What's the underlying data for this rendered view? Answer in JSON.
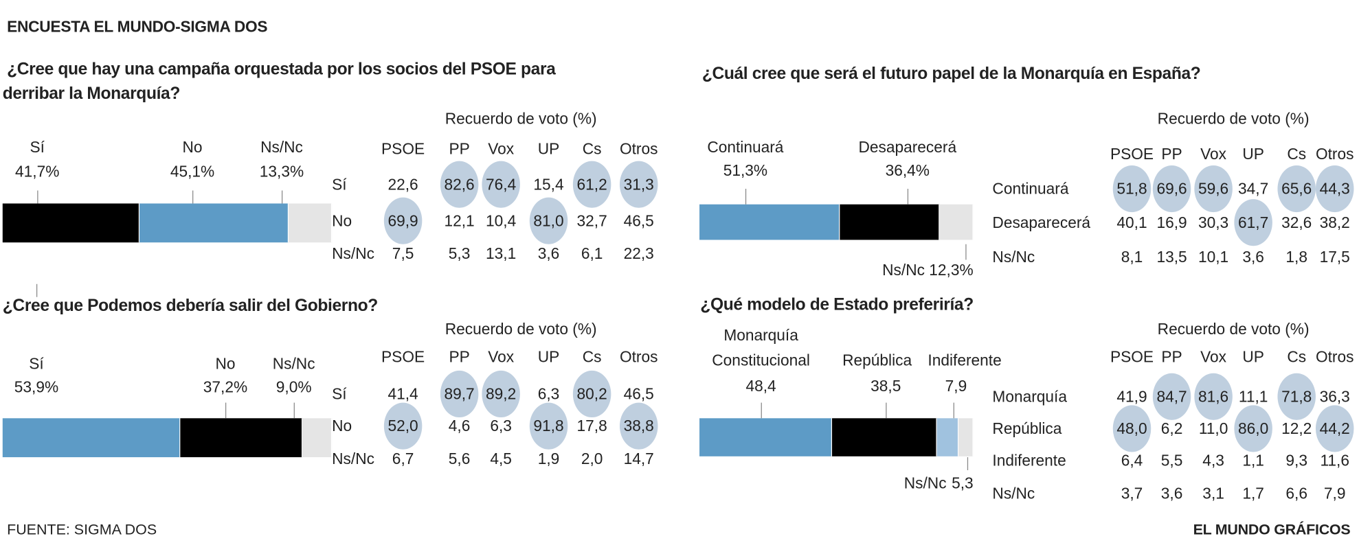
{
  "header": {
    "title": "ENCUESTA EL MUNDO-SIGMA DOS"
  },
  "footer": {
    "source": "FUENTE: SIGMA DOS",
    "credit": "EL MUNDO GRÁFICOS"
  },
  "colors": {
    "blue": "#5d9bc6",
    "black": "#000000",
    "gray": "#e5e5e5",
    "light_blue": "#a0c2df",
    "highlight": "#bfcfdf"
  },
  "chart_data": [
    {
      "type": "table",
      "title_lines": [
        "¿Cree que hay una campaña orquestada por los socios del PSOE para",
        "derribar la Monarquía?"
      ],
      "bar": [
        {
          "label": [
            "Sí"
          ],
          "value_label": "41,7%",
          "value": 41.7,
          "color": "#000000"
        },
        {
          "label": [
            "No"
          ],
          "value_label": "45,1%",
          "value": 45.1,
          "color": "#5d9bc6"
        },
        {
          "label": [
            "Ns/Nc"
          ],
          "value_label": "13,3%",
          "value": 13.3,
          "color": "#e5e5e5"
        }
      ],
      "table_title": "Recuerdo de voto (%)",
      "columns": [
        "PSOE",
        "PP",
        "Vox",
        "UP",
        "Cs",
        "Otros"
      ],
      "rows": [
        {
          "label": "Sí",
          "values": [
            "22,6",
            "82,6",
            "76,4",
            "15,4",
            "61,2",
            "31,3"
          ],
          "highlight": [
            false,
            true,
            true,
            false,
            true,
            true
          ]
        },
        {
          "label": "No",
          "values": [
            "69,9",
            "12,1",
            "10,4",
            "81,0",
            "32,7",
            "46,5"
          ],
          "highlight": [
            true,
            false,
            false,
            true,
            false,
            false
          ]
        },
        {
          "label": "Ns/Nc",
          "values": [
            "7,5",
            "5,3",
            "13,1",
            "3,6",
            "6,1",
            "22,3"
          ],
          "highlight": [
            false,
            false,
            false,
            false,
            false,
            false
          ]
        }
      ]
    },
    {
      "type": "table",
      "title_lines": [
        "¿Cree que Podemos debería salir del Gobierno?"
      ],
      "bar": [
        {
          "label": [
            "Sí"
          ],
          "value_label": "53,9%",
          "value": 53.9,
          "color": "#5d9bc6"
        },
        {
          "label": [
            "No"
          ],
          "value_label": "37,2%",
          "value": 37.2,
          "color": "#000000"
        },
        {
          "label": [
            "Ns/Nc"
          ],
          "value_label": "9,0%",
          "value": 9.0,
          "color": "#e5e5e5"
        }
      ],
      "table_title": "Recuerdo de voto (%)",
      "columns": [
        "PSOE",
        "PP",
        "Vox",
        "UP",
        "Cs",
        "Otros"
      ],
      "rows": [
        {
          "label": "Sí",
          "values": [
            "41,4",
            "89,7",
            "89,2",
            "6,3",
            "80,2",
            "46,5"
          ],
          "highlight": [
            false,
            true,
            true,
            false,
            true,
            false
          ]
        },
        {
          "label": "No",
          "values": [
            "52,0",
            "4,6",
            "6,3",
            "91,8",
            "17,8",
            "38,8"
          ],
          "highlight": [
            true,
            false,
            false,
            true,
            false,
            true
          ]
        },
        {
          "label": "Ns/Nc",
          "values": [
            "6,7",
            "5,6",
            "4,5",
            "1,9",
            "2,0",
            "14,7"
          ],
          "highlight": [
            false,
            false,
            false,
            false,
            false,
            false
          ]
        }
      ]
    },
    {
      "type": "table",
      "title_lines": [
        "¿Cuál cree que será el futuro papel de la Monarquía en España?"
      ],
      "bar": [
        {
          "label": [
            "Continuará"
          ],
          "value_label": "51,3%",
          "value": 51.3,
          "color": "#5d9bc6"
        },
        {
          "label": [
            "Desaparecerá"
          ],
          "value_label": "36,4%",
          "value": 36.4,
          "color": "#000000"
        },
        {
          "label": [
            "Ns/Nc"
          ],
          "value_label": "12,3%",
          "value": 12.3,
          "color": "#e5e5e5"
        }
      ],
      "table_title": "Recuerdo de voto (%)",
      "columns": [
        "PSOE",
        "PP",
        "Vox",
        "UP",
        "Cs",
        "Otros"
      ],
      "rows": [
        {
          "label": "Continuará",
          "values": [
            "51,8",
            "69,6",
            "59,6",
            "34,7",
            "65,6",
            "44,3"
          ],
          "highlight": [
            true,
            true,
            true,
            false,
            true,
            true
          ]
        },
        {
          "label": "Desaparecerá",
          "values": [
            "40,1",
            "16,9",
            "30,3",
            "61,7",
            "32,6",
            "38,2"
          ],
          "highlight": [
            false,
            false,
            false,
            true,
            false,
            false
          ]
        },
        {
          "label": "Ns/Nc",
          "values": [
            "8,1",
            "13,5",
            "10,1",
            "3,6",
            "1,8",
            "17,5"
          ],
          "highlight": [
            false,
            false,
            false,
            false,
            false,
            false
          ]
        }
      ]
    },
    {
      "type": "table",
      "title_lines": [
        "¿Qué modelo de Estado preferiría?"
      ],
      "bar": [
        {
          "label": [
            "Monarquía",
            "Constitucional"
          ],
          "value_label": "48,4",
          "value": 48.4,
          "color": "#5d9bc6"
        },
        {
          "label": [
            "República"
          ],
          "value_label": "38,5",
          "value": 38.5,
          "color": "#000000"
        },
        {
          "label": [
            "Indiferente"
          ],
          "value_label": "7,9",
          "value": 7.9,
          "color": "#a0c2df"
        },
        {
          "label": [
            "Ns/Nc"
          ],
          "value_label": "5,3",
          "value": 5.3,
          "color": "#e5e5e5"
        }
      ],
      "table_title": "Recuerdo de voto (%)",
      "columns": [
        "PSOE",
        "PP",
        "Vox",
        "UP",
        "Cs",
        "Otros"
      ],
      "rows": [
        {
          "label": "Monarquía",
          "values": [
            "41,9",
            "84,7",
            "81,6",
            "11,1",
            "71,8",
            "36,3"
          ],
          "highlight": [
            false,
            true,
            true,
            false,
            true,
            false
          ]
        },
        {
          "label": "República",
          "values": [
            "48,0",
            "6,2",
            "11,0",
            "86,0",
            "12,2",
            "44,2"
          ],
          "highlight": [
            true,
            false,
            false,
            true,
            false,
            true
          ]
        },
        {
          "label": "Indiferente",
          "values": [
            "6,4",
            "5,5",
            "4,3",
            "1,1",
            "9,3",
            "11,6"
          ],
          "highlight": [
            false,
            false,
            false,
            false,
            false,
            false
          ]
        },
        {
          "label": "Ns/Nc",
          "values": [
            "3,7",
            "3,6",
            "3,1",
            "1,7",
            "6,6",
            "7,9"
          ],
          "highlight": [
            false,
            false,
            false,
            false,
            false,
            false
          ]
        }
      ]
    }
  ]
}
